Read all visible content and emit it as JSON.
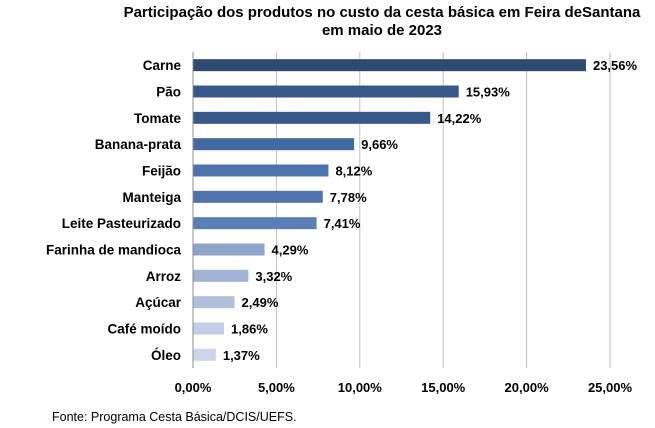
{
  "chart_data": {
    "type": "bar",
    "orientation": "horizontal",
    "title_lines": [
      "Participação dos produtos no custo da cesta básica em Feira deSantana",
      "em maio de 2023"
    ],
    "categories": [
      "Carne",
      "Pão",
      "Tomate",
      "Banana-prata",
      "Feijão",
      "Manteiga",
      "Leite Pasteurizado",
      "Farinha de mandioca",
      "Arroz",
      "Açúcar",
      "Café moído",
      "Óleo"
    ],
    "values": [
      23.56,
      15.93,
      14.22,
      9.66,
      8.12,
      7.78,
      7.41,
      4.29,
      3.32,
      2.49,
      1.86,
      1.37
    ],
    "value_labels": [
      "23,56%",
      "15,93%",
      "14,22%",
      "9,66%",
      "8,12%",
      "7,78%",
      "7,41%",
      "4,29%",
      "3,32%",
      "2,49%",
      "1,86%",
      "1,37%"
    ],
    "bar_colors": [
      "#2e4a6e",
      "#37598a",
      "#37598a",
      "#4468a0",
      "#4e73ac",
      "#4e73ac",
      "#5a7fb6",
      "#8ea4c8",
      "#a1b3d2",
      "#b1c0da",
      "#c2cee3",
      "#ccd6e8"
    ],
    "xlim": [
      0,
      25
    ],
    "xticks": [
      0,
      5,
      10,
      15,
      20,
      25
    ],
    "xtick_labels": [
      "0,00%",
      "5,00%",
      "10,00%",
      "15,00%",
      "20,00%",
      "25,00%"
    ],
    "grid": true,
    "source": "Fonte: Programa Cesta Básica/DCIS/UEFS."
  }
}
